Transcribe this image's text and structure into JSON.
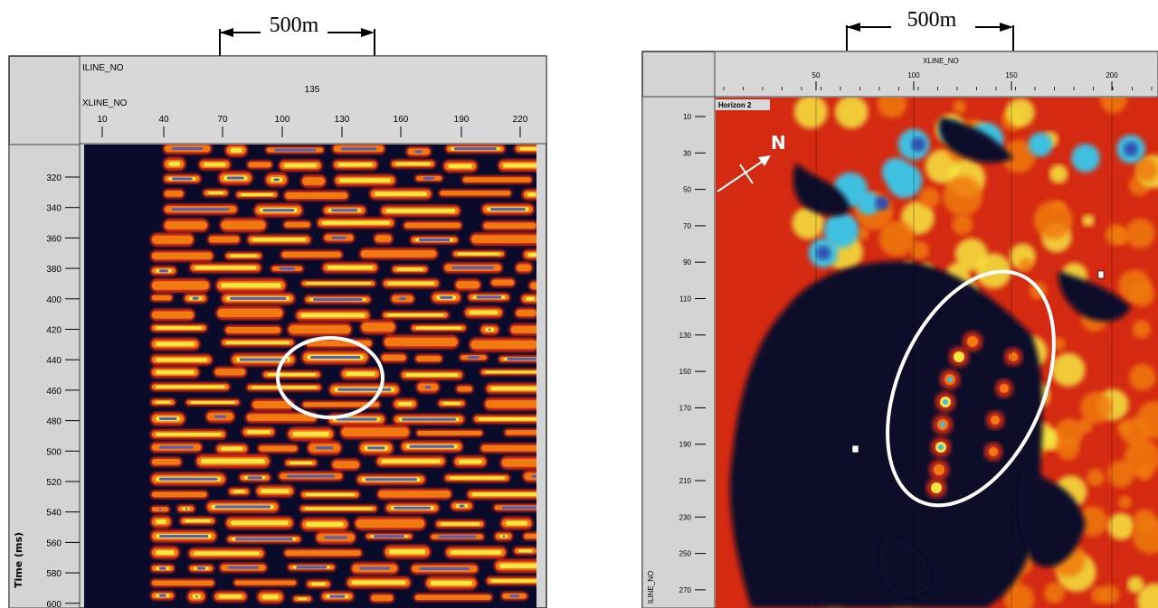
{
  "left_panel": {
    "scale_bar_label": "500m",
    "header": {
      "iline_label": "ILINE_NO",
      "xline_label": "XLINE_NO",
      "iline_value": "135"
    },
    "x_ticks": [
      "10",
      "40",
      "70",
      "100",
      "130",
      "160",
      "190",
      "220"
    ],
    "y_ticks": [
      "320",
      "340",
      "360",
      "380",
      "400",
      "420",
      "440",
      "460",
      "480",
      "500",
      "520",
      "540",
      "560",
      "580",
      "600"
    ],
    "y_axis_title": "Time (ms)",
    "colors": {
      "background": "#0a0a2a",
      "panel_gray": "#d4d4d4",
      "red": "#d42a12",
      "orange": "#f07a10",
      "yellow": "#f5e640",
      "cyan": "#40c0e0",
      "blue": "#5060c0",
      "circle": "#ffffff"
    }
  },
  "right_panel": {
    "scale_bar_label": "500m",
    "header": {
      "xline_label": "XLINE_NO"
    },
    "x_ticks": [
      "50",
      "100",
      "150",
      "200"
    ],
    "y_ticks": [
      "10",
      "30",
      "50",
      "70",
      "90",
      "110",
      "130",
      "150",
      "170",
      "190",
      "210",
      "230",
      "250",
      "270"
    ],
    "y_axis_title": "ILINE_NO",
    "horizon_label": "Horizon 2",
    "north_label": "N",
    "colors": {
      "background": "#d42a12",
      "dark": "#0a0a2a",
      "orange": "#f07a10",
      "yellow": "#f5e640",
      "cyan": "#40c0e0",
      "blue": "#3050b0",
      "circle": "#ffffff"
    }
  }
}
